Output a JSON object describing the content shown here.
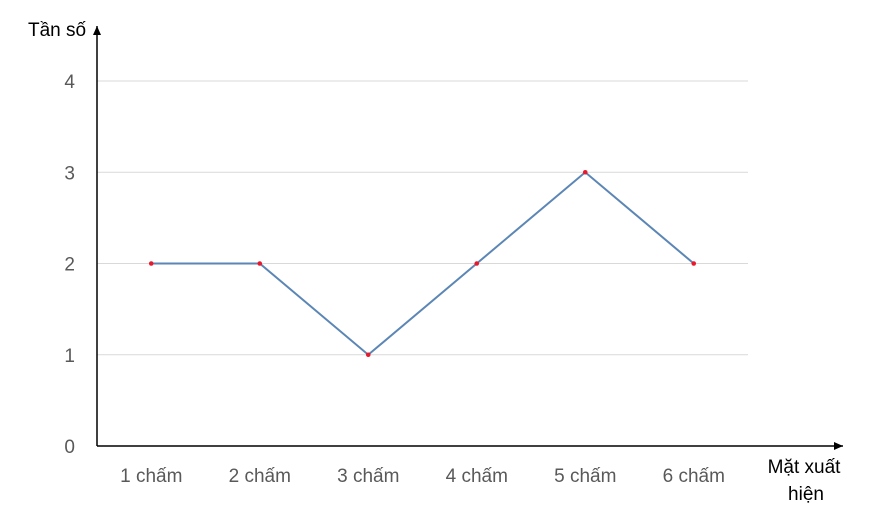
{
  "chart_data": {
    "type": "line",
    "categories": [
      "1 chấm",
      "2 chấm",
      "3 chấm",
      "4 chấm",
      "5 chấm",
      "6 chấm"
    ],
    "values": [
      2,
      2,
      1,
      2,
      3,
      2
    ],
    "ylabel": "Tần số",
    "xlabel_lines": [
      "Mặt xuất",
      "hiện"
    ],
    "yticks": [
      "0",
      "1",
      "2",
      "3",
      "4"
    ],
    "ylim": [
      0,
      4
    ],
    "grid": true,
    "legend": "none",
    "colors": {
      "line": "#5b86b5",
      "marker": "#e8192c",
      "grid": "#d9d9d9",
      "axis": "#000000"
    }
  }
}
